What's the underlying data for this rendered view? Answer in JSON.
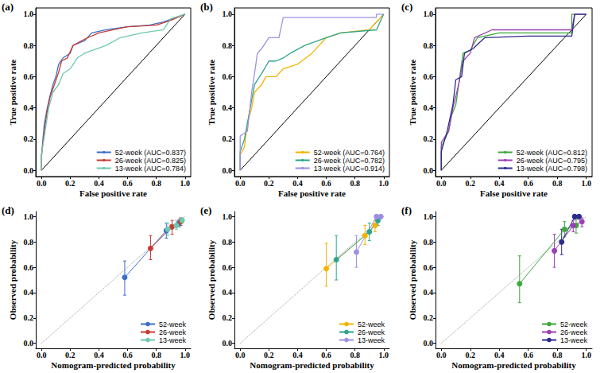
{
  "chart_data": [
    {
      "type": "roc",
      "title": "(a)",
      "xlabel": "False positive rate",
      "ylabel": "True positive rate",
      "xlim": [
        -0.04,
        1.04
      ],
      "ylim": [
        -0.04,
        1.04
      ],
      "xticks": [
        {
          "value": 0,
          "label": "0.0"
        },
        0.2,
        0.4,
        0.6,
        0.8,
        {
          "value": 1,
          "label": "1.0"
        }
      ],
      "yticks": [
        {
          "value": 0,
          "label": "0.0"
        },
        0.2,
        0.4,
        0.6,
        0.8,
        {
          "value": 1,
          "label": "1.0"
        }
      ],
      "legend": "lower right",
      "diagonal": {
        "x": [
          0,
          1
        ],
        "y": [
          0,
          1
        ]
      },
      "series": [
        {
          "name": "52-week (AUC=0.837)",
          "color": "#3b6fc6",
          "x": [
            0,
            0,
            0.01,
            0.02,
            0.04,
            0.06,
            0.08,
            0.1,
            0.12,
            0.15,
            0.2,
            0.22,
            0.3,
            0.35,
            0.45,
            0.6,
            0.75,
            0.85,
            1
          ],
          "y": [
            0,
            0.08,
            0.2,
            0.3,
            0.4,
            0.48,
            0.55,
            0.6,
            0.68,
            0.72,
            0.75,
            0.8,
            0.83,
            0.88,
            0.9,
            0.92,
            0.93,
            0.95,
            1
          ]
        },
        {
          "name": "26-week (AUC=0.825)",
          "color": "#c83a32",
          "x": [
            0,
            0,
            0.02,
            0.04,
            0.06,
            0.09,
            0.12,
            0.14,
            0.18,
            0.22,
            0.3,
            0.4,
            0.5,
            0.6,
            0.8,
            0.9,
            1
          ],
          "y": [
            0,
            0.1,
            0.25,
            0.38,
            0.47,
            0.55,
            0.63,
            0.7,
            0.72,
            0.8,
            0.84,
            0.88,
            0.9,
            0.92,
            0.93,
            0.96,
            1
          ]
        },
        {
          "name": "13-week (AUC=0.784)",
          "color": "#6cc9ad",
          "x": [
            0,
            0,
            0.02,
            0.05,
            0.08,
            0.12,
            0.15,
            0.2,
            0.25,
            0.3,
            0.45,
            0.55,
            0.7,
            0.85,
            0.9,
            1
          ],
          "y": [
            0,
            0.1,
            0.22,
            0.4,
            0.5,
            0.55,
            0.62,
            0.65,
            0.72,
            0.75,
            0.8,
            0.85,
            0.88,
            0.9,
            0.97,
            1
          ]
        }
      ]
    },
    {
      "type": "roc",
      "title": "(b)",
      "xlabel": "False positive rate",
      "ylabel": "True positive rate",
      "xlim": [
        -0.04,
        1.04
      ],
      "ylim": [
        -0.04,
        1.04
      ],
      "xticks": [
        {
          "value": 0,
          "label": "0.0"
        },
        0.2,
        0.4,
        0.6,
        0.8,
        {
          "value": 1,
          "label": "1.0"
        }
      ],
      "yticks": [
        {
          "value": 0,
          "label": "0.0"
        },
        0.2,
        0.4,
        0.6,
        0.8,
        {
          "value": 1,
          "label": "1.0"
        }
      ],
      "legend": "lower right",
      "diagonal": {
        "x": [
          0,
          1
        ],
        "y": [
          0,
          1
        ]
      },
      "series": [
        {
          "name": "52-week (AUC=0.764)",
          "color": "#f2b400",
          "x": [
            0,
            0,
            0.03,
            0.05,
            0.08,
            0.1,
            0.15,
            0.18,
            0.25,
            0.3,
            0.4,
            0.5,
            0.55,
            0.6,
            0.7,
            0.9,
            0.95,
            1
          ],
          "y": [
            0,
            0.1,
            0.15,
            0.3,
            0.4,
            0.5,
            0.55,
            0.6,
            0.6,
            0.65,
            0.68,
            0.75,
            0.8,
            0.85,
            0.88,
            0.9,
            0.95,
            1
          ]
        },
        {
          "name": "26-week (AUC=0.782)",
          "color": "#2ca58d",
          "x": [
            0,
            0,
            0.03,
            0.06,
            0.08,
            0.1,
            0.15,
            0.2,
            0.25,
            0.3,
            0.35,
            0.45,
            0.6,
            0.7,
            0.95,
            1
          ],
          "y": [
            0,
            0.12,
            0.2,
            0.35,
            0.45,
            0.55,
            0.62,
            0.7,
            0.7,
            0.72,
            0.75,
            0.8,
            0.85,
            0.88,
            0.9,
            1
          ]
        },
        {
          "name": "13-week (AUC=0.914)",
          "color": "#9d90e3",
          "x": [
            0,
            0,
            0.05,
            0.08,
            0.1,
            0.12,
            0.15,
            0.2,
            0.27,
            0.3,
            0.95,
            0.95,
            1
          ],
          "y": [
            0,
            0.22,
            0.25,
            0.5,
            0.62,
            0.75,
            0.78,
            0.85,
            0.85,
            0.98,
            0.98,
            1,
            1
          ]
        }
      ]
    },
    {
      "type": "roc",
      "title": "(c)",
      "xlabel": "False positive rate",
      "ylabel": "True positive rate",
      "xlim": [
        -0.04,
        1.04
      ],
      "ylim": [
        -0.04,
        1.04
      ],
      "xticks": [
        {
          "value": 0,
          "label": "0.0"
        },
        0.2,
        0.4,
        0.6,
        0.8,
        {
          "value": 1,
          "label": "1.0"
        }
      ],
      "yticks": [
        {
          "value": 0,
          "label": "0.0"
        },
        0.2,
        0.4,
        0.6,
        0.8,
        {
          "value": 1,
          "label": "1.0"
        }
      ],
      "legend": "lower right",
      "diagonal": {
        "x": [
          0,
          1
        ],
        "y": [
          0,
          1
        ]
      },
      "series": [
        {
          "name": "52-week (AUC=0.812)",
          "color": "#3aa83a",
          "x": [
            0,
            0,
            0.05,
            0.07,
            0.1,
            0.12,
            0.15,
            0.2,
            0.25,
            0.4,
            0.9,
            0.9,
            1
          ],
          "y": [
            0,
            0.15,
            0.25,
            0.35,
            0.42,
            0.55,
            0.75,
            0.77,
            0.85,
            0.88,
            0.88,
            1,
            1
          ]
        },
        {
          "name": "26-week (AUC=0.795)",
          "color": "#9b3fb5",
          "x": [
            0,
            0,
            0.05,
            0.08,
            0.12,
            0.15,
            0.2,
            0.23,
            0.35,
            0.9,
            0.92,
            1
          ],
          "y": [
            0,
            0.18,
            0.25,
            0.4,
            0.55,
            0.7,
            0.75,
            0.85,
            0.9,
            0.9,
            1,
            1
          ]
        },
        {
          "name": "13-week (AUC=0.798)",
          "color": "#2b2b8c",
          "x": [
            0,
            0,
            0.04,
            0.08,
            0.1,
            0.14,
            0.16,
            0.22,
            0.3,
            0.6,
            0.9,
            0.92,
            1
          ],
          "y": [
            0,
            0.12,
            0.25,
            0.42,
            0.58,
            0.6,
            0.75,
            0.78,
            0.85,
            0.86,
            0.86,
            1,
            1
          ]
        }
      ]
    },
    {
      "type": "calibration",
      "title": "(d)",
      "xlabel": "Nomogram-predicted probability",
      "ylabel": "Observed probability",
      "xlim": [
        -0.04,
        1.04
      ],
      "ylim": [
        -0.04,
        1.04
      ],
      "xticks": [
        {
          "value": 0,
          "label": "0.0"
        },
        0.2,
        0.4,
        0.6,
        0.8,
        {
          "value": 1,
          "label": "1.0"
        }
      ],
      "yticks": [
        {
          "value": 0,
          "label": "0.0"
        },
        0.2,
        0.4,
        0.6,
        0.8,
        {
          "value": 1,
          "label": "1.0"
        }
      ],
      "legend": "lower right",
      "marker": "circle",
      "diagonal": {
        "x": [
          0,
          1
        ],
        "y": [
          0,
          1
        ],
        "line_style": "dotted"
      },
      "series": [
        {
          "name": "52-week",
          "color": "#3b6fc6",
          "x": [
            0.58,
            0.87,
            0.96
          ],
          "y": [
            0.52,
            0.89,
            0.95
          ],
          "error_low": [
            0.38,
            0.83,
            0.92
          ],
          "error_high": [
            0.65,
            0.95,
            0.98
          ]
        },
        {
          "name": "26-week",
          "color": "#c83a32",
          "x": [
            0.76,
            0.91,
            0.97
          ],
          "y": [
            0.75,
            0.92,
            0.96
          ],
          "error_low": [
            0.66,
            0.86,
            0.93
          ],
          "error_high": [
            0.85,
            0.97,
            0.99
          ]
        },
        {
          "name": "13-week",
          "color": "#6cc9ad",
          "x": [
            0.88,
            0.94,
            0.98
          ],
          "y": [
            0.9,
            0.93,
            0.97
          ],
          "error_low": [
            0.85,
            0.9,
            0.95
          ],
          "error_high": [
            0.95,
            0.97,
            0.99
          ]
        }
      ]
    },
    {
      "type": "calibration",
      "title": "(e)",
      "xlabel": "Nomogram-predicted probability",
      "ylabel": "Observed probability",
      "xlim": [
        -0.04,
        1.04
      ],
      "ylim": [
        -0.04,
        1.04
      ],
      "xticks": [
        {
          "value": 0,
          "label": "0.0"
        },
        0.2,
        0.4,
        0.6,
        0.8,
        {
          "value": 1,
          "label": "1.0"
        }
      ],
      "yticks": [
        {
          "value": 0,
          "label": "0.0"
        },
        0.2,
        0.4,
        0.6,
        0.8,
        {
          "value": 1,
          "label": "1.0"
        }
      ],
      "legend": "lower right",
      "marker": "circle",
      "diagonal": {
        "x": [
          0,
          1
        ],
        "y": [
          0,
          1
        ],
        "line_style": "dotted"
      },
      "series": [
        {
          "name": "52-week",
          "color": "#f2b400",
          "x": [
            0.6,
            0.87,
            0.94
          ],
          "y": [
            0.59,
            0.85,
            0.93
          ],
          "error_low": [
            0.45,
            0.78,
            0.88
          ],
          "error_high": [
            0.79,
            0.93,
            0.97
          ]
        },
        {
          "name": "26-week",
          "color": "#2ca58d",
          "x": [
            0.67,
            0.9,
            0.96
          ],
          "y": [
            0.66,
            0.88,
            0.97
          ],
          "error_low": [
            0.5,
            0.81,
            0.93
          ],
          "error_high": [
            0.85,
            0.95,
            1.0
          ]
        },
        {
          "name": "13-week",
          "color": "#9d90e3",
          "x": [
            0.81,
            0.95,
            0.98
          ],
          "y": [
            0.72,
            1.0,
            1.0
          ],
          "error_low": [
            0.6,
            1.0,
            1.0
          ],
          "error_high": [
            0.85,
            1.0,
            1.0
          ]
        }
      ]
    },
    {
      "type": "calibration",
      "title": "(f)",
      "xlabel": "Nomogram-predicted probability",
      "ylabel": "Observed probability",
      "xlim": [
        -0.04,
        1.04
      ],
      "ylim": [
        -0.04,
        1.04
      ],
      "xticks": [
        {
          "value": 0,
          "label": "0.0"
        },
        0.2,
        0.4,
        0.6,
        0.8,
        {
          "value": 1,
          "label": "1.0"
        }
      ],
      "yticks": [
        {
          "value": 0,
          "label": "0.0"
        },
        0.2,
        0.4,
        0.6,
        0.8,
        {
          "value": 1,
          "label": "1.0"
        }
      ],
      "legend": "lower right",
      "marker": "circle",
      "diagonal": {
        "x": [
          0,
          1
        ],
        "y": [
          0,
          1
        ],
        "line_style": "dotted"
      },
      "series": [
        {
          "name": "52-week",
          "color": "#3aa83a",
          "x": [
            0.54,
            0.85,
            0.93
          ],
          "y": [
            0.47,
            0.9,
            0.93
          ],
          "error_low": [
            0.32,
            0.84,
            0.87
          ],
          "error_high": [
            0.69,
            0.96,
            0.98
          ]
        },
        {
          "name": "26-week",
          "color": "#9b3fb5",
          "x": [
            0.78,
            0.91,
            0.97
          ],
          "y": [
            0.73,
            0.93,
            0.96
          ],
          "error_low": [
            0.6,
            0.88,
            0.92
          ],
          "error_high": [
            0.86,
            0.97,
            0.99
          ]
        },
        {
          "name": "13-week",
          "color": "#2b2b8c",
          "x": [
            0.83,
            0.92,
            0.95
          ],
          "y": [
            0.8,
            1.0,
            1.0
          ],
          "error_low": [
            0.7,
            1.0,
            1.0
          ],
          "error_high": [
            0.9,
            1.0,
            1.0
          ]
        }
      ]
    }
  ]
}
